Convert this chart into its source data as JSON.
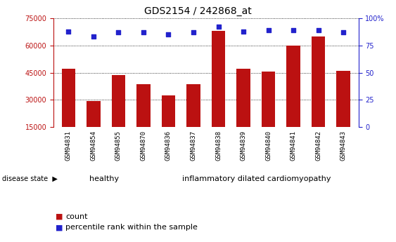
{
  "title": "GDS2154 / 242868_at",
  "samples": [
    "GSM94831",
    "GSM94854",
    "GSM94855",
    "GSM94870",
    "GSM94836",
    "GSM94837",
    "GSM94838",
    "GSM94839",
    "GSM94840",
    "GSM94841",
    "GSM94842",
    "GSM94843"
  ],
  "counts": [
    47000,
    29500,
    43500,
    38500,
    32500,
    38500,
    68000,
    47000,
    45500,
    60000,
    65000,
    46000
  ],
  "percentile": [
    88,
    83,
    87,
    87,
    85,
    87,
    92,
    88,
    89,
    89,
    89,
    87
  ],
  "healthy_count": 4,
  "healthy_label": "healthy",
  "disease_label": "inflammatory dilated cardiomyopathy",
  "disease_state_label": "disease state",
  "bar_color": "#BB1111",
  "dot_color": "#2222CC",
  "background_color": "#FFFFFF",
  "bar_width": 0.55,
  "ylim_left": [
    15000,
    75000
  ],
  "yticks_left": [
    15000,
    30000,
    45000,
    60000,
    75000
  ],
  "ylim_right": [
    0,
    100
  ],
  "yticks_right": [
    0,
    25,
    50,
    75,
    100
  ],
  "healthy_bg": "#AADDAA",
  "disease_bg": "#99EE99",
  "tick_area_bg": "#CCCCCC",
  "legend_count_label": "count",
  "legend_pct_label": "percentile rank within the sample",
  "title_fontsize": 10,
  "tick_fontsize": 7
}
